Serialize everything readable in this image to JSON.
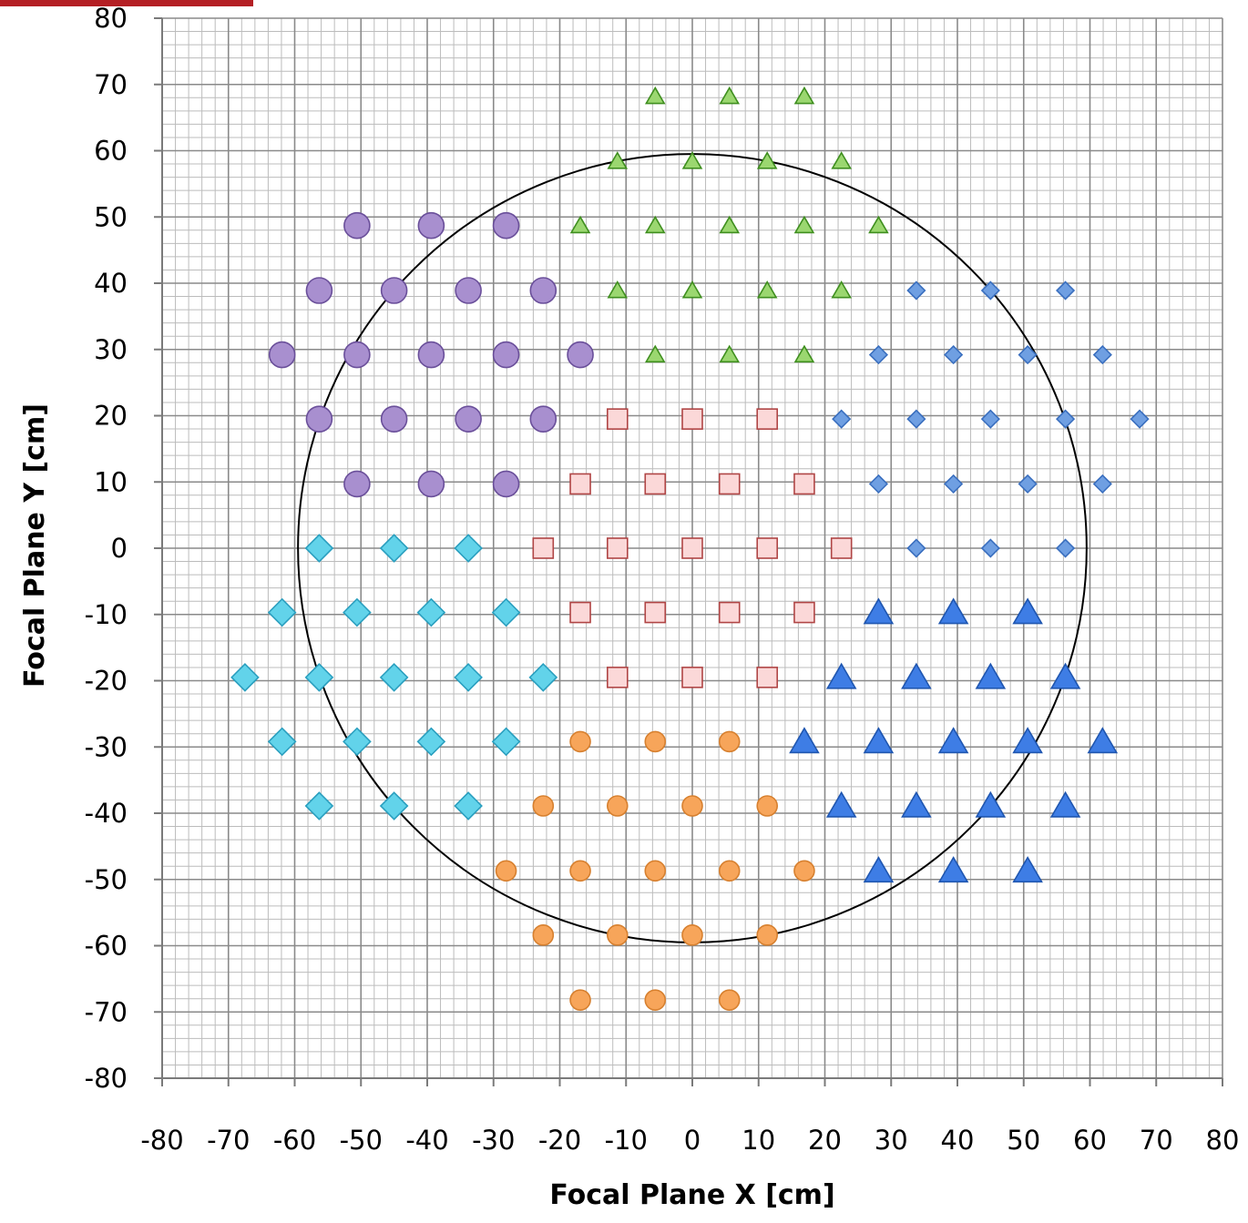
{
  "chart_data": {
    "type": "scatter",
    "title": "",
    "xlabel": "Focal Plane X [cm]",
    "ylabel": "Focal Plane Y [cm]",
    "xlim": [
      -80,
      80
    ],
    "ylim": [
      -80,
      80
    ],
    "x_ticks": [
      "-80",
      "-70",
      "-60",
      "-50",
      "-40",
      "-30",
      "-20",
      "-10",
      "0",
      "10",
      "20",
      "30",
      "40",
      "50",
      "60",
      "70",
      "80"
    ],
    "y_ticks": [
      "80",
      "70",
      "60",
      "50",
      "40",
      "30",
      "20",
      "10",
      "0",
      "-10",
      "-20",
      "-30",
      "-40",
      "-50",
      "-60",
      "-70",
      "-80"
    ],
    "grid": true,
    "minor_grid_step": 2,
    "legend": "none",
    "circle": {
      "cx": 0,
      "cy": 0,
      "r": 59.5
    },
    "series": [
      {
        "marker": "triangle",
        "color": "#9bd770",
        "stroke": "#3f8f1f",
        "size": "small",
        "points": [
          [
            -5.6,
            68.2
          ],
          [
            5.6,
            68.2
          ],
          [
            16.9,
            68.2
          ],
          [
            -11.3,
            58.4
          ],
          [
            0,
            58.4
          ],
          [
            11.3,
            58.4
          ],
          [
            22.5,
            58.4
          ],
          [
            -16.9,
            48.7
          ],
          [
            -5.6,
            48.7
          ],
          [
            5.6,
            48.7
          ],
          [
            16.9,
            48.7
          ],
          [
            28.1,
            48.7
          ],
          [
            -11.3,
            38.9
          ],
          [
            0,
            38.9
          ],
          [
            11.3,
            38.9
          ],
          [
            22.5,
            38.9
          ],
          [
            -5.6,
            29.2
          ],
          [
            5.6,
            29.2
          ],
          [
            16.9,
            29.2
          ]
        ]
      },
      {
        "marker": "circle",
        "color": "#a88fcf",
        "stroke": "#6a4f9a",
        "size": "large",
        "points": [
          [
            -50.6,
            48.7
          ],
          [
            -39.4,
            48.7
          ],
          [
            -28.1,
            48.7
          ],
          [
            -56.3,
            38.9
          ],
          [
            -45,
            38.9
          ],
          [
            -33.8,
            38.9
          ],
          [
            -22.5,
            38.9
          ],
          [
            -61.9,
            29.2
          ],
          [
            -50.6,
            29.2
          ],
          [
            -39.4,
            29.2
          ],
          [
            -28.1,
            29.2
          ],
          [
            -16.9,
            29.2
          ],
          [
            -56.3,
            19.5
          ],
          [
            -45,
            19.5
          ],
          [
            -33.8,
            19.5
          ],
          [
            -22.5,
            19.5
          ],
          [
            -50.6,
            9.7
          ],
          [
            -39.4,
            9.7
          ],
          [
            -28.1,
            9.7
          ]
        ]
      },
      {
        "marker": "diamond",
        "color": "#6f9fe2",
        "stroke": "#3a6fbf",
        "size": "small",
        "points": [
          [
            33.8,
            38.9
          ],
          [
            45,
            38.9
          ],
          [
            56.3,
            38.9
          ],
          [
            28.1,
            29.2
          ],
          [
            39.4,
            29.2
          ],
          [
            50.6,
            29.2
          ],
          [
            61.9,
            29.2
          ],
          [
            22.5,
            19.5
          ],
          [
            33.8,
            19.5
          ],
          [
            45,
            19.5
          ],
          [
            56.3,
            19.5
          ],
          [
            67.5,
            19.5
          ],
          [
            28.1,
            9.7
          ],
          [
            39.4,
            9.7
          ],
          [
            50.6,
            9.7
          ],
          [
            61.9,
            9.7
          ],
          [
            33.8,
            0
          ],
          [
            45,
            0
          ],
          [
            56.3,
            0
          ]
        ]
      },
      {
        "marker": "square",
        "color": "#fbd8d8",
        "stroke": "#b04545",
        "size": "medium",
        "points": [
          [
            -11.3,
            19.5
          ],
          [
            0,
            19.5
          ],
          [
            11.3,
            19.5
          ],
          [
            -16.9,
            9.7
          ],
          [
            -5.6,
            9.7
          ],
          [
            5.6,
            9.7
          ],
          [
            16.9,
            9.7
          ],
          [
            -22.5,
            0
          ],
          [
            -11.3,
            0
          ],
          [
            0,
            0
          ],
          [
            11.3,
            0
          ],
          [
            22.5,
            0
          ],
          [
            -16.9,
            -9.7
          ],
          [
            -5.6,
            -9.7
          ],
          [
            5.6,
            -9.7
          ],
          [
            16.9,
            -9.7
          ],
          [
            -11.3,
            -19.5
          ],
          [
            0,
            -19.5
          ],
          [
            11.3,
            -19.5
          ]
        ]
      },
      {
        "marker": "diamond",
        "color": "#62d3ea",
        "stroke": "#2a9fbf",
        "size": "large",
        "points": [
          [
            -56.3,
            0
          ],
          [
            -45,
            0
          ],
          [
            -33.8,
            0
          ],
          [
            -61.9,
            -9.7
          ],
          [
            -50.6,
            -9.7
          ],
          [
            -39.4,
            -9.7
          ],
          [
            -28.1,
            -9.7
          ],
          [
            -67.5,
            -19.5
          ],
          [
            -56.3,
            -19.5
          ],
          [
            -45,
            -19.5
          ],
          [
            -33.8,
            -19.5
          ],
          [
            -22.5,
            -19.5
          ],
          [
            -61.9,
            -29.2
          ],
          [
            -50.6,
            -29.2
          ],
          [
            -39.4,
            -29.2
          ],
          [
            -28.1,
            -29.2
          ],
          [
            -56.3,
            -38.9
          ],
          [
            -45,
            -38.9
          ],
          [
            -33.8,
            -38.9
          ]
        ]
      },
      {
        "marker": "triangle",
        "color": "#3e7de5",
        "stroke": "#1f56b0",
        "size": "large",
        "points": [
          [
            28.1,
            -9.7
          ],
          [
            39.4,
            -9.7
          ],
          [
            50.6,
            -9.7
          ],
          [
            22.5,
            -19.5
          ],
          [
            33.8,
            -19.5
          ],
          [
            45,
            -19.5
          ],
          [
            56.3,
            -19.5
          ],
          [
            16.9,
            -29.2
          ],
          [
            28.1,
            -29.2
          ],
          [
            39.4,
            -29.2
          ],
          [
            50.6,
            -29.2
          ],
          [
            61.9,
            -29.2
          ],
          [
            22.5,
            -38.9
          ],
          [
            33.8,
            -38.9
          ],
          [
            45,
            -38.9
          ],
          [
            56.3,
            -38.9
          ],
          [
            28.1,
            -48.7
          ],
          [
            39.4,
            -48.7
          ],
          [
            50.6,
            -48.7
          ]
        ]
      },
      {
        "marker": "circle",
        "color": "#f7a55a",
        "stroke": "#d7802f",
        "size": "medium",
        "points": [
          [
            -16.9,
            -29.2
          ],
          [
            -5.6,
            -29.2
          ],
          [
            5.6,
            -29.2
          ],
          [
            -22.5,
            -38.9
          ],
          [
            -11.3,
            -38.9
          ],
          [
            0,
            -38.9
          ],
          [
            11.3,
            -38.9
          ],
          [
            -28.1,
            -48.7
          ],
          [
            -16.9,
            -48.7
          ],
          [
            -5.6,
            -48.7
          ],
          [
            5.6,
            -48.7
          ],
          [
            16.9,
            -48.7
          ],
          [
            -22.5,
            -58.4
          ],
          [
            -11.3,
            -58.4
          ],
          [
            0,
            -58.4
          ],
          [
            11.3,
            -58.4
          ],
          [
            -16.9,
            -68.2
          ],
          [
            -5.6,
            -68.2
          ],
          [
            5.6,
            -68.2
          ]
        ]
      }
    ]
  }
}
